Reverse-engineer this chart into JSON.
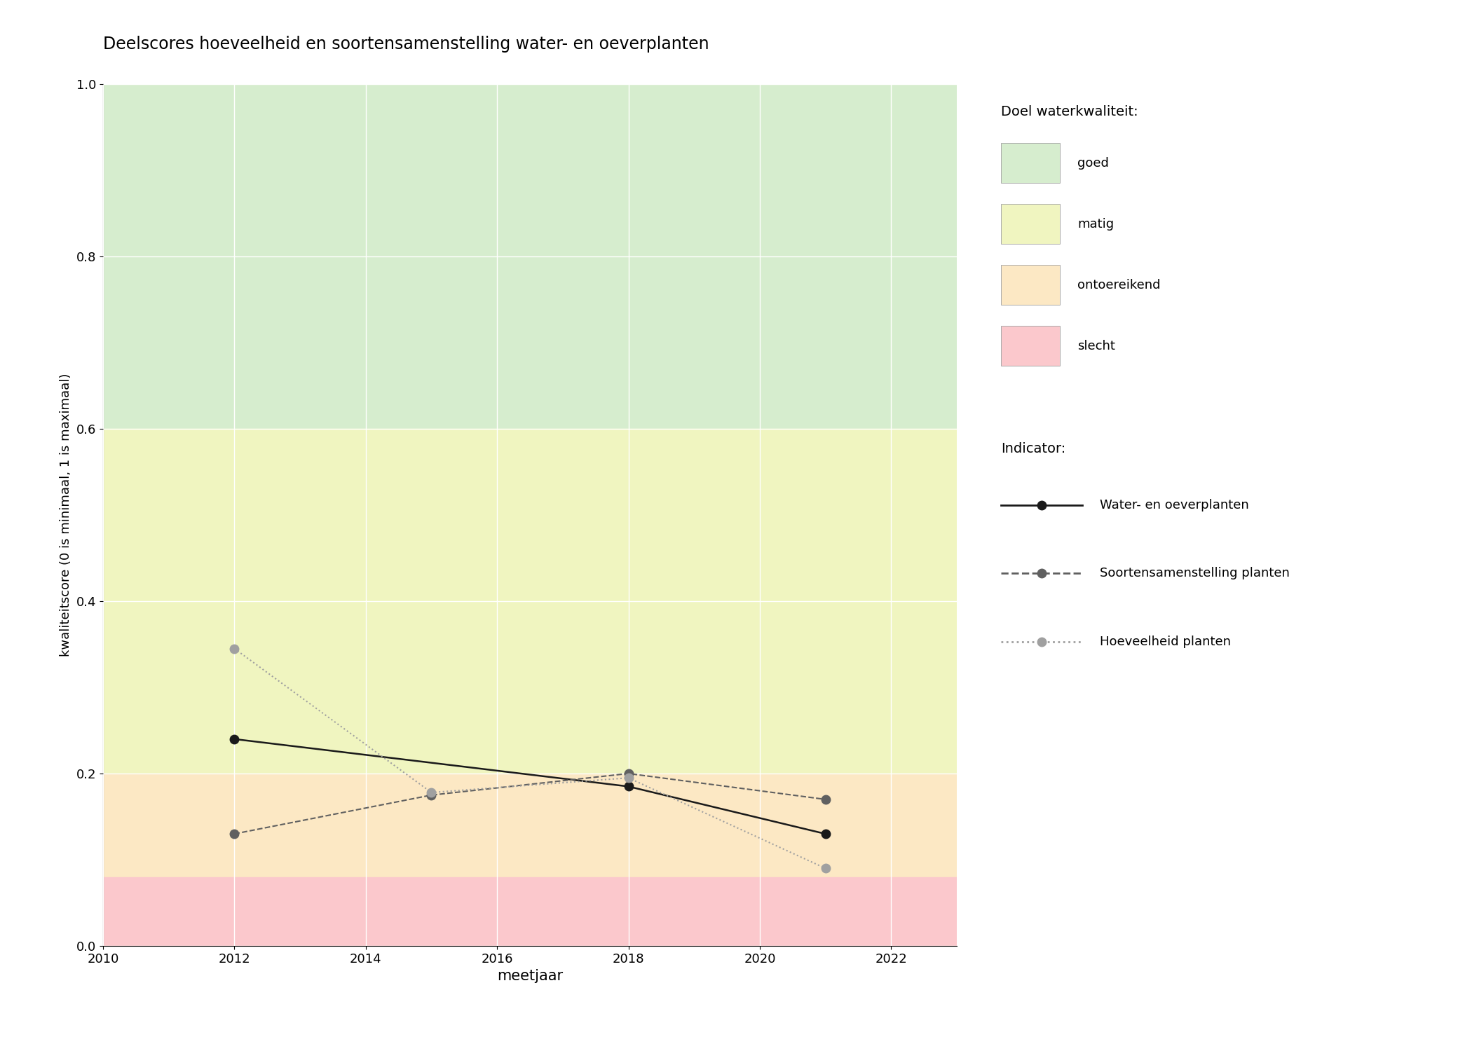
{
  "title": "Deelscores hoeveelheid en soortensamenstelling water- en oeverplanten",
  "xlabel": "meetjaar",
  "ylabel": "kwaliteitscore (0 is minimaal, 1 is maximaal)",
  "xlim": [
    2010,
    2023
  ],
  "ylim": [
    0.0,
    1.0
  ],
  "xticks": [
    2010,
    2012,
    2014,
    2016,
    2018,
    2020,
    2022
  ],
  "yticks": [
    0.0,
    0.2,
    0.4,
    0.6,
    0.8,
    1.0
  ],
  "bg_bands": [
    {
      "label": "goed",
      "color": "#d6edce",
      "ymin": 0.6,
      "ymax": 1.0
    },
    {
      "label": "matig",
      "color": "#f0f5c0",
      "ymin": 0.2,
      "ymax": 0.6
    },
    {
      "label": "ontoereikend",
      "color": "#fce8c4",
      "ymin": 0.08,
      "ymax": 0.2
    },
    {
      "label": "slecht",
      "color": "#fbc8cc",
      "ymin": 0.0,
      "ymax": 0.08
    }
  ],
  "series": [
    {
      "key": "water_oever",
      "years": [
        2012,
        2018,
        2021
      ],
      "values": [
        0.24,
        0.185,
        0.13
      ],
      "color": "#1a1a1a",
      "linestyle": "solid",
      "linewidth": 1.8,
      "markersize": 9,
      "label": "Water- en oeverplanten"
    },
    {
      "key": "soortensamenstelling",
      "years": [
        2012,
        2015,
        2018,
        2021
      ],
      "values": [
        0.13,
        0.175,
        0.2,
        0.17
      ],
      "color": "#606060",
      "linestyle": "dashed",
      "linewidth": 1.5,
      "markersize": 9,
      "label": "Soortensamenstelling planten"
    },
    {
      "key": "hoeveelheid",
      "years": [
        2012,
        2015,
        2018,
        2021
      ],
      "values": [
        0.345,
        0.178,
        0.195,
        0.09
      ],
      "color": "#a0a0a0",
      "linestyle": "dotted",
      "linewidth": 1.5,
      "markersize": 9,
      "label": "Hoeveelheid planten"
    }
  ],
  "legend_quality_title": "Doel waterkwaliteit:",
  "legend_indicator_title": "Indicator:",
  "figsize": [
    21.0,
    15.0
  ],
  "dpi": 100
}
